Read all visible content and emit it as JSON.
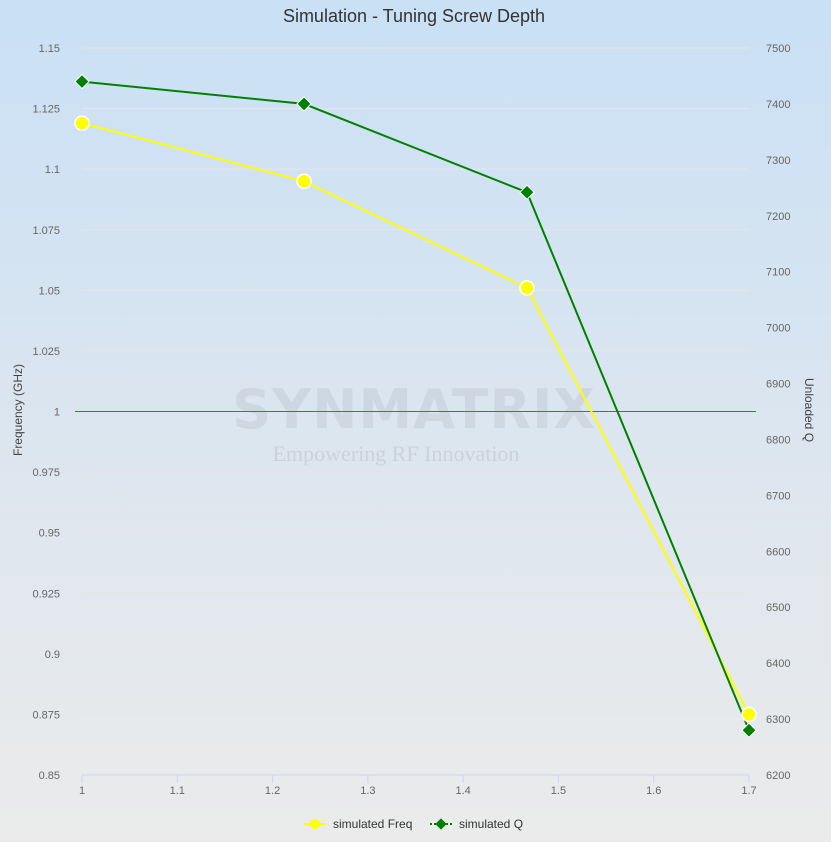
{
  "chart_data": {
    "type": "line",
    "title": "Simulation - Tuning Screw Depth",
    "xlabel": "",
    "ylabel": "Frequency (GHz)",
    "y2label": "Unloaded Q",
    "xlim": [
      1,
      1.7
    ],
    "ylim": [
      0.85,
      1.15
    ],
    "y2lim": [
      6200,
      7500
    ],
    "x_ticks": [
      "1",
      "1.1",
      "1.2",
      "1.3",
      "1.4",
      "1.5",
      "1.6",
      "1.7"
    ],
    "y_ticks": [
      "0.85",
      "0.875",
      "0.9",
      "0.925",
      "0.95",
      "0.975",
      "1",
      "1.025",
      "1.05",
      "1.075",
      "1.1",
      "1.125",
      "1.15"
    ],
    "y2_ticks": [
      "6200",
      "6300",
      "6400",
      "6500",
      "6600",
      "6700",
      "6800",
      "6900",
      "7000",
      "7100",
      "7200",
      "7300",
      "7400",
      "7500"
    ],
    "reference_line": {
      "axis": "y",
      "value": 1
    },
    "grid": true,
    "legend_position": "bottom",
    "series": [
      {
        "name": "simulated Freq",
        "axis": "left",
        "color": "#ffff00",
        "marker": "circle",
        "x": [
          1,
          1.233,
          1.467,
          1.7
        ],
        "values": [
          1.119,
          1.095,
          1.051,
          0.875
        ]
      },
      {
        "name": "simulated Q",
        "axis": "right",
        "color": "#008000",
        "marker": "diamond",
        "x": [
          1,
          1.233,
          1.467,
          1.7
        ],
        "values": [
          7440,
          7400,
          7242,
          6280
        ]
      }
    ]
  },
  "watermark": {
    "main": "SYNMATRIX",
    "sub": "Empowering RF Innovation"
  }
}
